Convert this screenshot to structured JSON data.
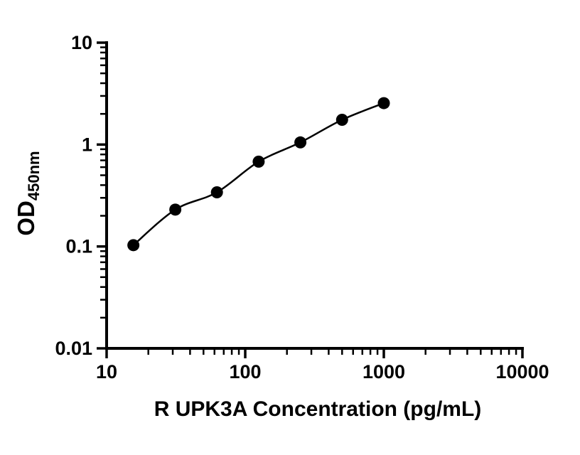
{
  "chart_data": {
    "type": "scatter",
    "title": "",
    "xlabel": "R UPK3A Concentration (pg/mL)",
    "ylabel_main": "OD",
    "ylabel_sub": "450nm",
    "x": [
      15.6,
      31.3,
      62.5,
      125,
      250,
      500,
      1000
    ],
    "y": [
      0.103,
      0.23,
      0.34,
      0.68,
      1.05,
      1.75,
      2.55
    ],
    "x_scale": "log",
    "y_scale": "log",
    "xlim": [
      10,
      10000
    ],
    "ylim": [
      0.01,
      10
    ],
    "x_tick_labels": [
      "10",
      "100",
      "1000",
      "10000"
    ],
    "y_tick_labels": [
      "0.01",
      "0.1",
      "1",
      "10"
    ],
    "minor_ticks": true,
    "grid": false,
    "legend": null,
    "marker_color": "#000000",
    "line_color": "#000000",
    "background_color": "#ffffff"
  }
}
